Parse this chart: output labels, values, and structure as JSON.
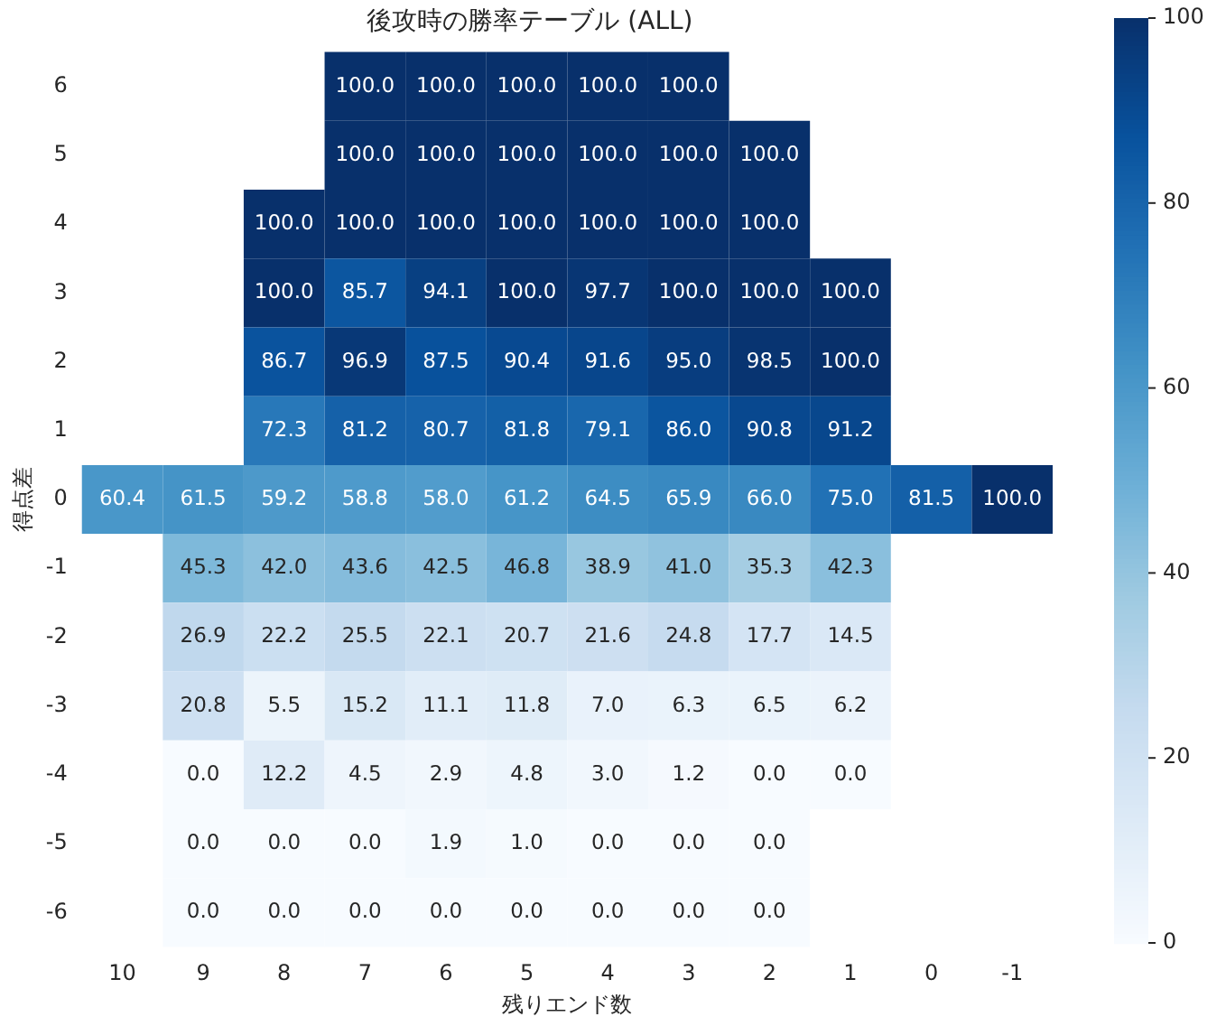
{
  "chart_data": {
    "type": "heatmap",
    "title": "後攻時の勝率テーブル (ALL)",
    "xlabel": "残りエンド数",
    "ylabel": "得点差",
    "categories": [
      "10",
      "9",
      "8",
      "7",
      "6",
      "5",
      "4",
      "3",
      "2",
      "1",
      "0",
      "-1"
    ],
    "y_categories": [
      "6",
      "5",
      "4",
      "3",
      "2",
      "1",
      "0",
      "-1",
      "-2",
      "-3",
      "-4",
      "-5",
      "-6"
    ],
    "cells": [
      [
        null,
        null,
        null,
        100.0,
        100.0,
        100.0,
        100.0,
        100.0,
        null,
        null,
        null,
        null
      ],
      [
        null,
        null,
        null,
        100.0,
        100.0,
        100.0,
        100.0,
        100.0,
        100.0,
        null,
        null,
        null
      ],
      [
        null,
        null,
        100.0,
        100.0,
        100.0,
        100.0,
        100.0,
        100.0,
        100.0,
        null,
        null,
        null
      ],
      [
        null,
        null,
        100.0,
        85.7,
        94.1,
        100.0,
        97.7,
        100.0,
        100.0,
        100.0,
        null,
        null
      ],
      [
        null,
        null,
        86.7,
        96.9,
        87.5,
        90.4,
        91.6,
        95.0,
        98.5,
        100.0,
        null,
        null
      ],
      [
        null,
        null,
        72.3,
        81.2,
        80.7,
        81.8,
        79.1,
        86.0,
        90.8,
        91.2,
        null,
        null
      ],
      [
        60.4,
        61.5,
        59.2,
        58.8,
        58.0,
        61.2,
        64.5,
        65.9,
        66.0,
        75.0,
        81.5,
        100.0
      ],
      [
        null,
        45.3,
        42.0,
        43.6,
        42.5,
        46.8,
        38.9,
        41.0,
        35.3,
        42.3,
        null,
        null
      ],
      [
        null,
        26.9,
        22.2,
        25.5,
        22.1,
        20.7,
        21.6,
        24.8,
        17.7,
        14.5,
        null,
        null
      ],
      [
        null,
        20.8,
        5.5,
        15.2,
        11.1,
        11.8,
        7.0,
        6.3,
        6.5,
        6.2,
        null,
        null
      ],
      [
        null,
        0.0,
        12.2,
        4.5,
        2.9,
        4.8,
        3.0,
        1.2,
        0.0,
        0.0,
        null,
        null
      ],
      [
        null,
        0.0,
        0.0,
        0.0,
        1.9,
        1.0,
        0.0,
        0.0,
        0.0,
        null,
        null,
        null
      ],
      [
        null,
        0.0,
        0.0,
        0.0,
        0.0,
        0.0,
        0.0,
        0.0,
        0.0,
        null,
        null,
        null
      ]
    ],
    "cell_labels": [
      [
        null,
        null,
        null,
        "100.0",
        "100.0",
        "100.0",
        "100.0",
        "100.0",
        null,
        null,
        null,
        null
      ],
      [
        null,
        null,
        null,
        "100.0",
        "100.0",
        "100.0",
        "100.0",
        "100.0",
        "100.0",
        null,
        null,
        null
      ],
      [
        null,
        null,
        "100.0",
        "100.0",
        "100.0",
        "100.0",
        "100.0",
        "100.0",
        "100.0",
        null,
        null,
        null
      ],
      [
        null,
        null,
        "100.0",
        "85.7",
        "94.1",
        "100.0",
        "97.7",
        "100.0",
        "100.0",
        "100.0",
        null,
        null
      ],
      [
        null,
        null,
        "86.7",
        "96.9",
        "87.5",
        "90.4",
        "91.6",
        "95.0",
        "98.5",
        "100.0",
        null,
        null
      ],
      [
        null,
        null,
        "72.3",
        "81.2",
        "80.7",
        "81.8",
        "79.1",
        "86.0",
        "90.8",
        "91.2",
        null,
        null
      ],
      [
        "60.4",
        "61.5",
        "59.2",
        "58.8",
        "58.0",
        "61.2",
        "64.5",
        "65.9",
        "66.0",
        "75.0",
        "81.5",
        "100.0"
      ],
      [
        null,
        "45.3",
        "42.0",
        "43.6",
        "42.5",
        "46.8",
        "38.9",
        "41.0",
        "35.3",
        "42.3",
        null,
        null
      ],
      [
        null,
        "26.9",
        "22.2",
        "25.5",
        "22.1",
        "20.7",
        "21.6",
        "24.8",
        "17.7",
        "14.5",
        null,
        null
      ],
      [
        null,
        "20.8",
        "5.5",
        "15.2",
        "11.1",
        "11.8",
        "7.0",
        "6.3",
        "6.5",
        "6.2",
        null,
        null
      ],
      [
        null,
        "0.0",
        "12.2",
        "4.5",
        "2.9",
        "4.8",
        "3.0",
        "1.2",
        "0.0",
        "0.0",
        null,
        null
      ],
      [
        null,
        "0.0",
        "0.0",
        "0.0",
        "1.9",
        "1.0",
        "0.0",
        "0.0",
        "0.0",
        null,
        null,
        null
      ],
      [
        null,
        "0.0",
        "0.0",
        "0.0",
        "0.0",
        "0.0",
        "0.0",
        "0.0",
        "0.0",
        null,
        null,
        null
      ]
    ],
    "clim": [
      0,
      100
    ],
    "cticks": [
      0,
      20,
      40,
      60,
      80,
      100
    ]
  }
}
